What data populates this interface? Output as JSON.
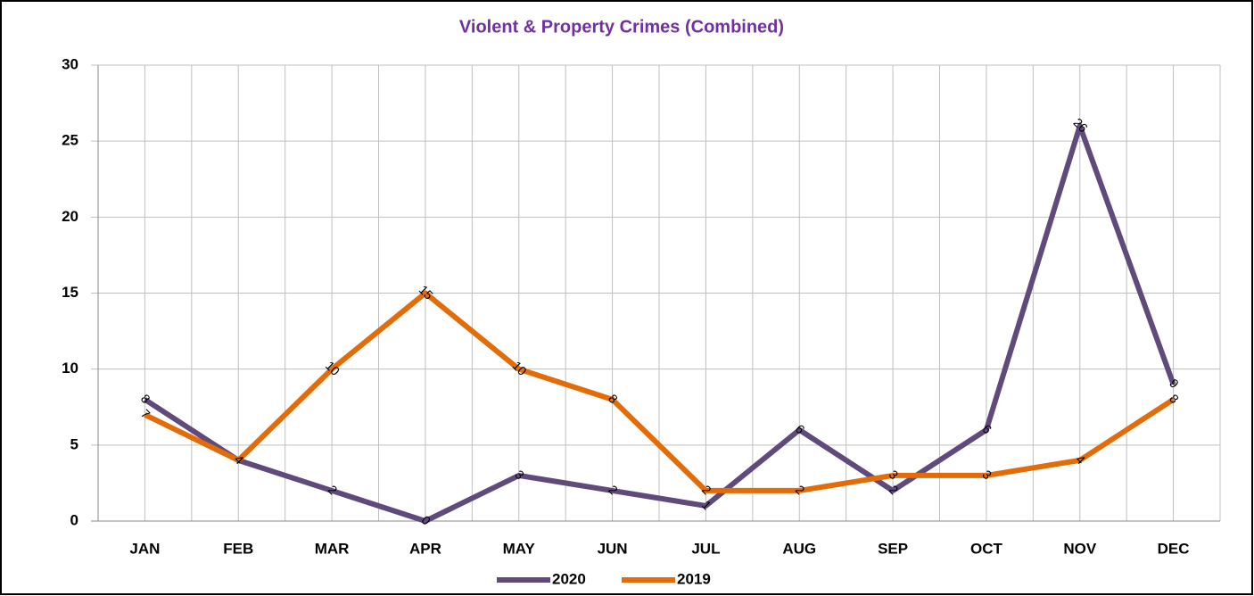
{
  "chart_data": {
    "type": "line",
    "title": "Violent & Property Crimes (Combined)",
    "categories": [
      "JAN",
      "FEB",
      "MAR",
      "APR",
      "MAY",
      "JUN",
      "JUL",
      "AUG",
      "SEP",
      "OCT",
      "NOV",
      "DEC"
    ],
    "series": [
      {
        "name": "2020",
        "color": "#604a7b",
        "values": [
          8,
          4,
          2,
          0,
          3,
          2,
          1,
          6,
          2,
          6,
          26,
          9
        ]
      },
      {
        "name": "2019",
        "color": "#e36c09",
        "values": [
          7,
          4,
          10,
          15,
          10,
          8,
          2,
          2,
          3,
          3,
          4,
          8
        ]
      }
    ],
    "ylim": [
      0,
      30
    ],
    "yticks": [
      0,
      5,
      10,
      15,
      20,
      25,
      30
    ],
    "grid": true,
    "legend": "bottom"
  }
}
